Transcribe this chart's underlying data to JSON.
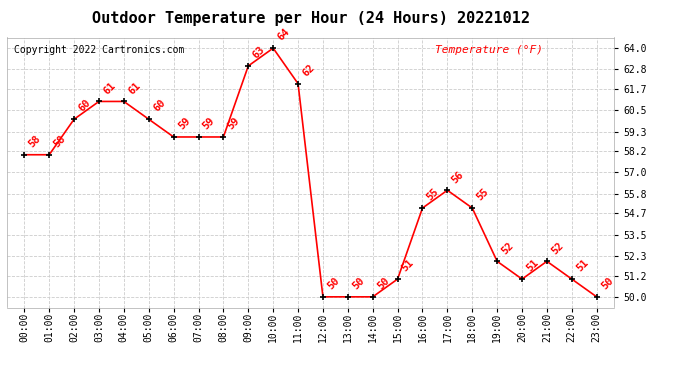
{
  "title": "Outdoor Temperature per Hour (24 Hours) 20221012",
  "copyright_text": "Copyright 2022 Cartronics.com",
  "legend_text": "Temperature (°F)",
  "hours": [
    0,
    1,
    2,
    3,
    4,
    5,
    6,
    7,
    8,
    9,
    10,
    11,
    12,
    13,
    14,
    15,
    16,
    17,
    18,
    19,
    20,
    21,
    22,
    23
  ],
  "temperatures": [
    58,
    58,
    60,
    61,
    61,
    60,
    59,
    59,
    59,
    63,
    64,
    62,
    50,
    50,
    50,
    51,
    55,
    56,
    55,
    52,
    51,
    52,
    51,
    50
  ],
  "hour_labels": [
    "00:00",
    "01:00",
    "02:00",
    "03:00",
    "04:00",
    "05:00",
    "06:00",
    "07:00",
    "08:00",
    "09:00",
    "10:00",
    "11:00",
    "12:00",
    "13:00",
    "14:00",
    "15:00",
    "16:00",
    "17:00",
    "18:00",
    "19:00",
    "20:00",
    "21:00",
    "22:00",
    "23:00"
  ],
  "yticks": [
    50.0,
    51.2,
    52.3,
    53.5,
    54.7,
    55.8,
    57.0,
    58.2,
    59.3,
    60.5,
    61.7,
    62.8,
    64.0
  ],
  "line_color": "#ff0000",
  "marker_color": "#000000",
  "label_color": "#ff0000",
  "title_color": "#000000",
  "copyright_color": "#000000",
  "legend_color": "#ff0000",
  "background_color": "#ffffff",
  "grid_color": "#cccccc",
  "ylim_min": 49.4,
  "ylim_max": 64.6,
  "title_fontsize": 11,
  "label_fontsize": 7,
  "annotation_fontsize": 7.5,
  "copyright_fontsize": 7,
  "legend_fontsize": 8
}
